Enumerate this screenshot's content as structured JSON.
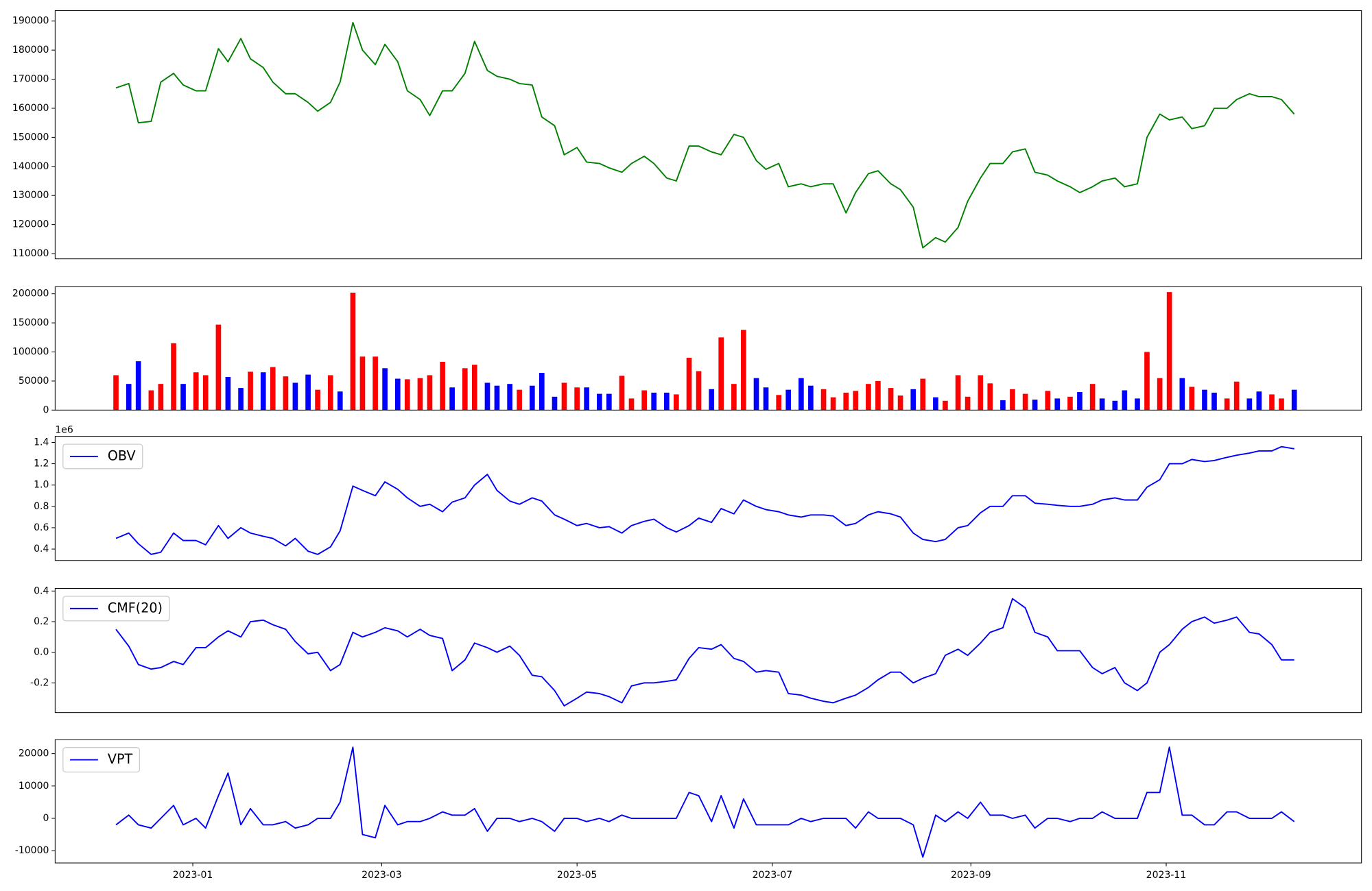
{
  "chart_data": {
    "type": "multi-panel",
    "x": [
      "2022-12-08",
      "2022-12-12",
      "2022-12-15",
      "2022-12-19",
      "2022-12-22",
      "2022-12-26",
      "2022-12-29",
      "2023-01-02",
      "2023-01-05",
      "2023-01-09",
      "2023-01-12",
      "2023-01-16",
      "2023-01-19",
      "2023-01-23",
      "2023-01-26",
      "2023-01-30",
      "2023-02-02",
      "2023-02-06",
      "2023-02-09",
      "2023-02-13",
      "2023-02-16",
      "2023-02-20",
      "2023-02-23",
      "2023-02-27",
      "2023-03-02",
      "2023-03-06",
      "2023-03-09",
      "2023-03-13",
      "2023-03-16",
      "2023-03-20",
      "2023-03-23",
      "2023-03-27",
      "2023-03-30",
      "2023-04-03",
      "2023-04-06",
      "2023-04-10",
      "2023-04-13",
      "2023-04-17",
      "2023-04-20",
      "2023-04-24",
      "2023-04-27",
      "2023-05-01",
      "2023-05-04",
      "2023-05-08",
      "2023-05-11",
      "2023-05-15",
      "2023-05-18",
      "2023-05-22",
      "2023-05-25",
      "2023-05-29",
      "2023-06-01",
      "2023-06-05",
      "2023-06-08",
      "2023-06-12",
      "2023-06-15",
      "2023-06-19",
      "2023-06-22",
      "2023-06-26",
      "2023-06-29",
      "2023-07-03",
      "2023-07-06",
      "2023-07-10",
      "2023-07-13",
      "2023-07-17",
      "2023-07-20",
      "2023-07-24",
      "2023-07-27",
      "2023-07-31",
      "2023-08-03",
      "2023-08-07",
      "2023-08-10",
      "2023-08-14",
      "2023-08-17",
      "2023-08-21",
      "2023-08-24",
      "2023-08-28",
      "2023-08-31",
      "2023-09-04",
      "2023-09-07",
      "2023-09-11",
      "2023-09-14",
      "2023-09-18",
      "2023-09-21",
      "2023-09-25",
      "2023-09-28",
      "2023-10-02",
      "2023-10-05",
      "2023-10-09",
      "2023-10-12",
      "2023-10-16",
      "2023-10-19",
      "2023-10-23",
      "2023-10-26",
      "2023-10-30",
      "2023-11-02",
      "2023-11-06",
      "2023-11-09",
      "2023-11-13",
      "2023-11-16",
      "2023-11-20",
      "2023-11-23",
      "2023-11-27",
      "2023-11-30",
      "2023-12-04",
      "2023-12-07",
      "2023-12-11"
    ],
    "xlim": [
      "2022-11-19",
      "2024-01-01"
    ],
    "xticks": [
      "2023-01",
      "2023-03",
      "2023-05",
      "2023-07",
      "2023-09",
      "2023-11"
    ],
    "panels": [
      {
        "type": "line",
        "ylim": [
          108200,
          193600
        ],
        "yticks": [
          110000,
          120000,
          130000,
          140000,
          150000,
          160000,
          170000,
          180000,
          190000
        ],
        "series": [
          {
            "color": "#008000",
            "values": [
              167000,
              168500,
              155000,
              155500,
              169000,
              172000,
              168000,
              166000,
              166000,
              180500,
              176000,
              184000,
              177000,
              174000,
              169000,
              165000,
              165000,
              162000,
              159000,
              162000,
              169000,
              189500,
              180000,
              175000,
              182000,
              176000,
              166000,
              163000,
              157500,
              166000,
              166000,
              172000,
              183000,
              173000,
              171000,
              170000,
              168500,
              168000,
              157000,
              154000,
              144000,
              146500,
              141500,
              141000,
              139500,
              138000,
              141000,
              143500,
              141000,
              136000,
              135000,
              147000,
              147000,
              145000,
              144000,
              151000,
              150000,
              142000,
              139000,
              141000,
              133000,
              134000,
              133000,
              134000,
              134000,
              124000,
              131000,
              137500,
              138500,
              134000,
              132000,
              126000,
              112000,
              115500,
              114000,
              119000,
              128000,
              136000,
              141000,
              141000,
              145000,
              146000,
              138000,
              137000,
              135000,
              133000,
              131000,
              133000,
              135000,
              136000,
              133000,
              134000,
              150000,
              158000,
              156000,
              157000,
              153000,
              154000,
              160000,
              160000,
              163000,
              165000,
              164000,
              164000,
              163000,
              158000
            ]
          }
        ]
      },
      {
        "type": "bar",
        "ylim": [
          0,
          212000
        ],
        "yticks": [
          0,
          50000,
          100000,
          150000,
          200000
        ],
        "values": [
          60000,
          45000,
          84000,
          34000,
          45000,
          115000,
          45000,
          65000,
          60000,
          147000,
          57000,
          38000,
          66000,
          65000,
          74000,
          58000,
          47000,
          61000,
          35000,
          60000,
          32000,
          202000,
          92000,
          92000,
          72000,
          54000,
          53000,
          55000,
          60000,
          83000,
          39000,
          72000,
          78000,
          47000,
          42000,
          45000,
          35000,
          42000,
          64000,
          23000,
          47000,
          39000,
          39000,
          28000,
          28000,
          59000,
          20000,
          34000,
          30000,
          30000,
          27000,
          90000,
          67000,
          36000,
          125000,
          45000,
          138000,
          55000,
          39000,
          26000,
          35000,
          55000,
          42000,
          36000,
          22000,
          30000,
          33000,
          45000,
          50000,
          38000,
          25000,
          36000,
          54000,
          22000,
          16000,
          60000,
          23000,
          60000,
          46000,
          17000,
          36000,
          28000,
          18000,
          33000,
          20000,
          23000,
          31000,
          45000,
          20000,
          16000,
          34000,
          20000,
          100000,
          55000,
          203000,
          55000,
          40000,
          35000,
          30000,
          20000,
          49000,
          20000,
          32000,
          27000,
          20000,
          35000
        ],
        "colors": [
          "red",
          "blue",
          "blue",
          "red",
          "red",
          "red",
          "blue",
          "red",
          "red",
          "red",
          "blue",
          "blue",
          "red",
          "blue",
          "red",
          "red",
          "blue",
          "blue",
          "red",
          "red",
          "blue",
          "red",
          "red",
          "red",
          "blue",
          "blue",
          "red",
          "red",
          "red",
          "red",
          "blue",
          "red",
          "red",
          "blue",
          "blue",
          "blue",
          "red",
          "blue",
          "blue",
          "blue",
          "red",
          "red",
          "blue",
          "blue",
          "blue",
          "red",
          "red",
          "red",
          "blue",
          "blue",
          "red",
          "red",
          "red",
          "blue",
          "red",
          "red",
          "red",
          "blue",
          "blue",
          "red",
          "blue",
          "blue",
          "blue",
          "red",
          "red",
          "red",
          "red",
          "red",
          "red",
          "red",
          "red",
          "blue",
          "red",
          "blue",
          "red",
          "red",
          "red",
          "red",
          "red",
          "blue",
          "red",
          "red",
          "blue",
          "red",
          "blue",
          "red",
          "blue",
          "red",
          "blue",
          "blue",
          "blue",
          "blue",
          "red",
          "red",
          "red",
          "blue",
          "red",
          "blue",
          "blue",
          "red",
          "red",
          "blue",
          "blue",
          "red",
          "red",
          "blue"
        ]
      },
      {
        "type": "line",
        "ylim": [
          0.293,
          1.457
        ],
        "offset_text": "1e6",
        "legend": "upper left",
        "yticks": [
          0.4,
          0.6,
          0.8,
          {
            "value": 1,
            "label": "1.0"
          },
          1.2,
          1.4
        ],
        "series": [
          {
            "name": "OBV",
            "color": "#0000ff",
            "values": [
              0.5,
              0.55,
              0.45,
              0.35,
              0.37,
              0.55,
              0.48,
              0.48,
              0.44,
              0.62,
              0.5,
              0.6,
              0.55,
              0.52,
              0.5,
              0.43,
              0.5,
              0.38,
              0.35,
              0.42,
              0.57,
              0.99,
              0.95,
              0.9,
              1.03,
              0.96,
              0.88,
              0.8,
              0.82,
              0.75,
              0.84,
              0.88,
              1.0,
              1.1,
              0.95,
              0.85,
              0.82,
              0.88,
              0.85,
              0.72,
              0.68,
              0.62,
              0.64,
              0.6,
              0.61,
              0.55,
              0.62,
              0.66,
              0.68,
              0.6,
              0.56,
              0.62,
              0.69,
              0.65,
              0.78,
              0.73,
              0.86,
              0.8,
              0.77,
              0.75,
              0.72,
              0.7,
              0.72,
              0.72,
              0.71,
              0.62,
              0.64,
              0.72,
              0.75,
              0.73,
              0.7,
              0.55,
              0.49,
              0.47,
              0.49,
              0.6,
              0.62,
              0.74,
              0.8,
              0.8,
              0.9,
              0.9,
              0.83,
              0.82,
              0.81,
              0.8,
              0.8,
              0.82,
              0.86,
              0.88,
              0.86,
              0.86,
              0.98,
              1.05,
              1.2,
              1.2,
              1.24,
              1.22,
              1.23,
              1.26,
              1.28,
              1.3,
              1.32,
              1.32,
              1.36,
              1.34
            ]
          }
        ]
      },
      {
        "type": "line",
        "ylim": [
          -0.394,
          0.417
        ],
        "legend": "upper left",
        "yticks": [
          -0.2,
          {
            "value": 0,
            "label": "0.0"
          },
          0.2,
          0.4
        ],
        "series": [
          {
            "name": "CMF(20)",
            "color": "#0000ff",
            "values": [
              0.15,
              0.04,
              -0.08,
              -0.11,
              -0.1,
              -0.06,
              -0.08,
              0.03,
              0.03,
              0.1,
              0.14,
              0.1,
              0.2,
              0.21,
              0.18,
              0.15,
              0.07,
              -0.01,
              0,
              -0.12,
              -0.08,
              0.13,
              0.1,
              0.13,
              0.16,
              0.14,
              0.1,
              0.15,
              0.11,
              0.09,
              -0.12,
              -0.05,
              0.06,
              0.03,
              0,
              0.04,
              -0.02,
              -0.15,
              -0.16,
              -0.25,
              -0.35,
              -0.3,
              -0.26,
              -0.27,
              -0.29,
              -0.33,
              -0.22,
              -0.2,
              -0.2,
              -0.19,
              -0.18,
              -0.04,
              0.03,
              0.02,
              0.05,
              -0.04,
              -0.06,
              -0.13,
              -0.12,
              -0.13,
              -0.27,
              -0.28,
              -0.3,
              -0.32,
              -0.33,
              -0.3,
              -0.28,
              -0.23,
              -0.18,
              -0.13,
              -0.13,
              -0.2,
              -0.17,
              -0.14,
              -0.02,
              0.02,
              -0.02,
              0.06,
              0.13,
              0.16,
              0.35,
              0.29,
              0.13,
              0.1,
              0.01,
              0.01,
              0.01,
              -0.1,
              -0.14,
              -0.1,
              -0.2,
              -0.25,
              -0.2,
              0,
              0.05,
              0.15,
              0.2,
              0.23,
              0.19,
              0.21,
              0.23,
              0.13,
              0.12,
              0.05,
              -0.05,
              -0.05
            ]
          }
        ]
      },
      {
        "type": "line",
        "ylim": [
          -13784,
          24324
        ],
        "legend": "upper left",
        "yticks": [
          -10000,
          0,
          10000,
          20000
        ],
        "series": [
          {
            "name": "VPT",
            "color": "#0000ff",
            "values": [
              -2000,
              1000,
              -2000,
              -3000,
              0,
              4000,
              -2000,
              0,
              -3000,
              7000,
              14000,
              -2000,
              3000,
              -2000,
              -2000,
              -1000,
              -3000,
              -2000,
              0,
              0,
              5000,
              22000,
              -5000,
              -6000,
              4000,
              -2000,
              -1000,
              -1000,
              0,
              2000,
              1000,
              1000,
              3000,
              -4000,
              0,
              0,
              -1000,
              0,
              -1000,
              -4000,
              0,
              0,
              -1000,
              0,
              -1000,
              1000,
              0,
              0,
              0,
              0,
              0,
              8000,
              7000,
              -1000,
              7000,
              -3000,
              6000,
              -2000,
              -2000,
              -2000,
              -2000,
              0,
              -1000,
              0,
              0,
              0,
              -3000,
              2000,
              0,
              0,
              0,
              -2000,
              -12000,
              1000,
              -1000,
              2000,
              0,
              5000,
              1000,
              1000,
              0,
              1000,
              -3000,
              0,
              0,
              -1000,
              0,
              0,
              2000,
              0,
              0,
              0,
              8000,
              8000,
              22000,
              1000,
              1000,
              -2000,
              -2000,
              2000,
              2000,
              0,
              0,
              0,
              2000,
              -1000
            ]
          }
        ]
      }
    ]
  }
}
